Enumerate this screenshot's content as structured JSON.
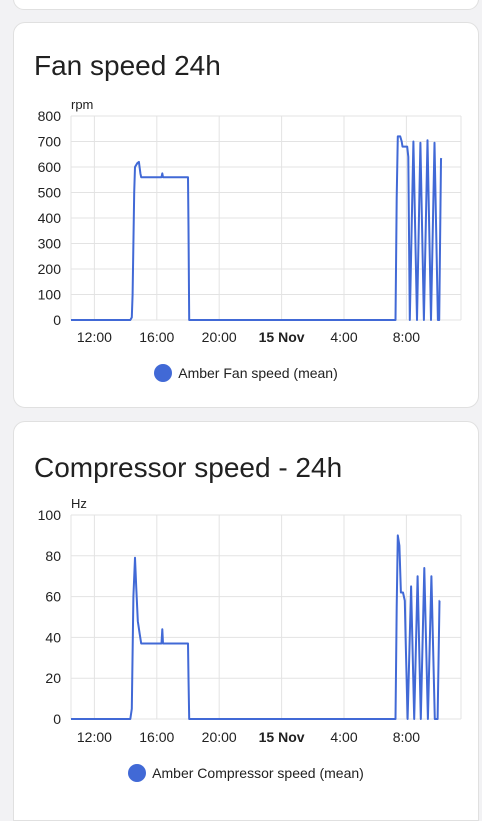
{
  "colors": {
    "series": "#4169d6",
    "grid": "#e3e3e3"
  },
  "chart_data": [
    {
      "type": "line",
      "title": "Fan speed 24h",
      "ylabel": "rpm",
      "ylim": [
        0,
        800
      ],
      "yticks": [
        0,
        100,
        200,
        300,
        400,
        500,
        600,
        700,
        800
      ],
      "xlim": [
        10.5,
        35.5
      ],
      "xticks": [
        {
          "x": 12,
          "label": "12:00",
          "bold": false
        },
        {
          "x": 16,
          "label": "16:00",
          "bold": false
        },
        {
          "x": 20,
          "label": "20:00",
          "bold": false
        },
        {
          "x": 24,
          "label": "15 Nov",
          "bold": true
        },
        {
          "x": 28,
          "label": "4:00",
          "bold": false
        },
        {
          "x": 32,
          "label": "8:00",
          "bold": false
        }
      ],
      "grid": true,
      "legend_position": "bottom-center",
      "series": [
        {
          "name": "Amber Fan speed (mean)",
          "points": [
            [
              10.5,
              0
            ],
            [
              14.3,
              0
            ],
            [
              14.4,
              10
            ],
            [
              14.45,
              100
            ],
            [
              14.55,
              500
            ],
            [
              14.6,
              600
            ],
            [
              14.75,
              615
            ],
            [
              14.85,
              620
            ],
            [
              14.95,
              575
            ],
            [
              15.0,
              560
            ],
            [
              16.3,
              560
            ],
            [
              16.35,
              575
            ],
            [
              16.4,
              560
            ],
            [
              18.0,
              560
            ],
            [
              18.03,
              360
            ],
            [
              18.08,
              0
            ],
            [
              31.3,
              0
            ],
            [
              31.38,
              480
            ],
            [
              31.45,
              720
            ],
            [
              31.6,
              720
            ],
            [
              31.7,
              700
            ],
            [
              31.75,
              680
            ],
            [
              32.05,
              680
            ],
            [
              32.12,
              640
            ],
            [
              32.22,
              0
            ],
            [
              32.45,
              700
            ],
            [
              32.68,
              0
            ],
            [
              32.9,
              695
            ],
            [
              33.12,
              0
            ],
            [
              33.35,
              705
            ],
            [
              33.58,
              0
            ],
            [
              33.8,
              695
            ],
            [
              34.02,
              0
            ],
            [
              34.1,
              0
            ],
            [
              34.22,
              630
            ],
            [
              34.23,
              635
            ]
          ]
        }
      ]
    },
    {
      "type": "line",
      "title": "Compressor speed - 24h",
      "ylabel": "Hz",
      "ylim": [
        0,
        100
      ],
      "yticks": [
        0,
        20,
        40,
        60,
        80,
        100
      ],
      "xlim": [
        10.5,
        35.5
      ],
      "xticks": [
        {
          "x": 12,
          "label": "12:00",
          "bold": false
        },
        {
          "x": 16,
          "label": "16:00",
          "bold": false
        },
        {
          "x": 20,
          "label": "20:00",
          "bold": false
        },
        {
          "x": 24,
          "label": "15 Nov",
          "bold": true
        },
        {
          "x": 28,
          "label": "4:00",
          "bold": false
        },
        {
          "x": 32,
          "label": "8:00",
          "bold": false
        }
      ],
      "grid": true,
      "legend_position": "bottom-center",
      "series": [
        {
          "name": "Amber Compressor speed (mean)",
          "points": [
            [
              10.5,
              0
            ],
            [
              14.3,
              0
            ],
            [
              14.4,
              5
            ],
            [
              14.5,
              60
            ],
            [
              14.6,
              79
            ],
            [
              14.68,
              65
            ],
            [
              14.78,
              48
            ],
            [
              14.9,
              42
            ],
            [
              15.0,
              37
            ],
            [
              16.3,
              37
            ],
            [
              16.35,
              44
            ],
            [
              16.4,
              37
            ],
            [
              18.0,
              37
            ],
            [
              18.03,
              20
            ],
            [
              18.08,
              0
            ],
            [
              31.3,
              0
            ],
            [
              31.38,
              55
            ],
            [
              31.45,
              90
            ],
            [
              31.55,
              85
            ],
            [
              31.65,
              62
            ],
            [
              31.78,
              62
            ],
            [
              31.9,
              58
            ],
            [
              31.95,
              40
            ],
            [
              32.08,
              0
            ],
            [
              32.3,
              65
            ],
            [
              32.5,
              0
            ],
            [
              32.72,
              70
            ],
            [
              32.92,
              0
            ],
            [
              33.15,
              74
            ],
            [
              33.38,
              0
            ],
            [
              33.6,
              70
            ],
            [
              33.82,
              0
            ],
            [
              34.0,
              0
            ],
            [
              34.12,
              58
            ],
            [
              34.13,
              58
            ]
          ]
        }
      ]
    }
  ]
}
